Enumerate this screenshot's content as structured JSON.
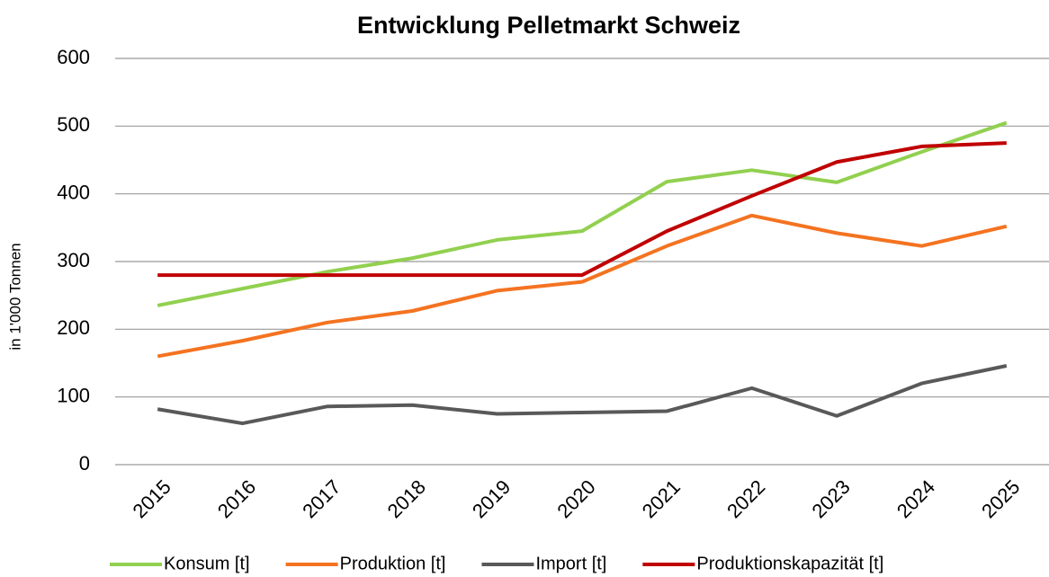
{
  "chart_data": {
    "type": "line",
    "title": "Entwicklung Pelletmarkt Schweiz",
    "y_label": "in 1'000 Tonnen",
    "categories": [
      "2015",
      "2016",
      "2017",
      "2018",
      "2019",
      "2020",
      "2021",
      "2022",
      "2023",
      "2024",
      "2025"
    ],
    "series": [
      {
        "name": "Konsum [t]",
        "color": "#92d050",
        "values": [
          235,
          260,
          285,
          305,
          332,
          345,
          418,
          435,
          417,
          462,
          505
        ]
      },
      {
        "name": "Produktion [t]",
        "color": "#f47321",
        "values": [
          160,
          183,
          210,
          227,
          257,
          270,
          323,
          368,
          342,
          323,
          352
        ]
      },
      {
        "name": "Import [t]",
        "color": "#595959",
        "values": [
          82,
          61,
          86,
          88,
          75,
          77,
          79,
          113,
          72,
          120,
          146
        ]
      },
      {
        "name": "Produktionskapazität [t]",
        "color": "#c00000",
        "values": [
          280,
          280,
          280,
          280,
          280,
          280,
          345,
          397,
          447,
          470,
          475
        ]
      }
    ],
    "ylim": [
      0,
      600
    ],
    "yticks": [
      0,
      100,
      200,
      300,
      400,
      500,
      600
    ],
    "grid": true,
    "legend": "bottom"
  }
}
